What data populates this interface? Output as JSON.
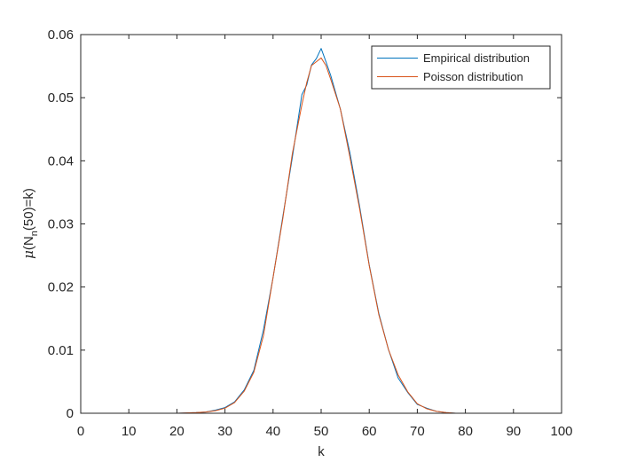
{
  "chart_data": {
    "type": "line",
    "xlabel": "k",
    "ylabel": {
      "prefix": "μ",
      "main": "(N",
      "subscript": "n",
      "suffix": "(50)=k)"
    },
    "xlim": [
      0,
      100
    ],
    "ylim": [
      0,
      0.06
    ],
    "xticks": [
      0,
      10,
      20,
      30,
      40,
      50,
      60,
      70,
      80,
      90,
      100
    ],
    "xtick_labels": [
      "0",
      "10",
      "20",
      "30",
      "40",
      "50",
      "60",
      "70",
      "80",
      "90",
      "100"
    ],
    "yticks": [
      0,
      0.01,
      0.02,
      0.03,
      0.04,
      0.05,
      0.06
    ],
    "ytick_labels": [
      "0",
      "0.01",
      "0.02",
      "0.03",
      "0.04",
      "0.05",
      "0.06"
    ],
    "grid": false,
    "legend_position": "top-right",
    "series": [
      {
        "name": "Empirical distribution",
        "color": "#0072BD",
        "x": [
          0,
          10,
          20,
          24,
          26,
          28,
          30,
          32,
          34,
          36,
          38,
          40,
          42,
          44,
          46,
          47,
          48,
          49,
          50,
          51,
          52,
          54,
          56,
          58,
          60,
          62,
          64,
          66,
          68,
          70,
          72,
          74,
          76,
          78,
          80,
          90,
          100
        ],
        "y": [
          0,
          0,
          0,
          0.0001,
          0.0002,
          0.0005,
          0.0009,
          0.0018,
          0.0037,
          0.0068,
          0.0132,
          0.0215,
          0.031,
          0.0405,
          0.0505,
          0.052,
          0.0552,
          0.0562,
          0.0578,
          0.0557,
          0.0535,
          0.0482,
          0.0412,
          0.0328,
          0.0235,
          0.0158,
          0.0101,
          0.0056,
          0.0033,
          0.0014,
          0.0008,
          0.0003,
          0.0001,
          0,
          0,
          0,
          0
        ]
      },
      {
        "name": "Poisson distribution",
        "color": "#D95319",
        "x": [
          0,
          10,
          20,
          24,
          26,
          28,
          30,
          32,
          34,
          36,
          38,
          40,
          42,
          44,
          46,
          47,
          48,
          49,
          50,
          51,
          52,
          54,
          56,
          58,
          60,
          62,
          64,
          66,
          68,
          70,
          72,
          74,
          76,
          78,
          80,
          90,
          100
        ],
        "y": [
          0,
          0,
          0,
          0.0001,
          0.0002,
          0.0004,
          0.0008,
          0.0017,
          0.0035,
          0.0065,
          0.0123,
          0.0215,
          0.0307,
          0.0411,
          0.0489,
          0.0524,
          0.0551,
          0.0557,
          0.0563,
          0.0551,
          0.0529,
          0.0482,
          0.0405,
          0.0324,
          0.0234,
          0.0156,
          0.0101,
          0.0061,
          0.0034,
          0.0015,
          0.0007,
          0.0003,
          0.0001,
          0,
          0,
          0,
          0
        ]
      }
    ]
  }
}
